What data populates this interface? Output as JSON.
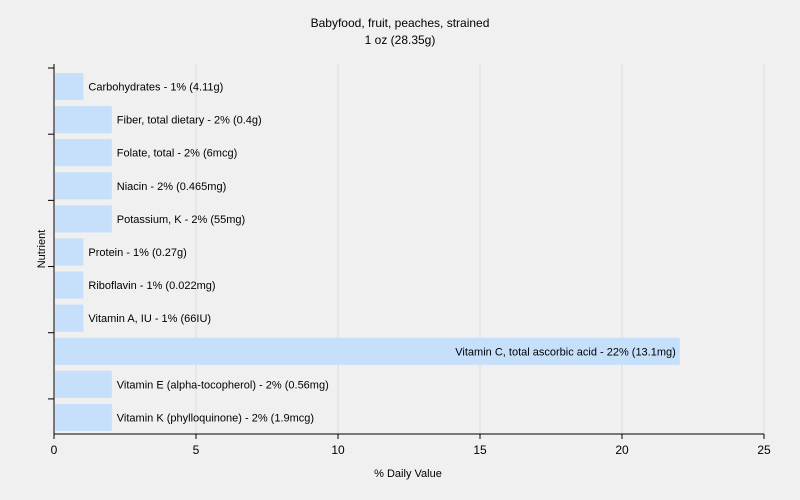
{
  "chart_data": {
    "type": "bar",
    "orientation": "horizontal",
    "title": "Babyfood, fruit, peaches, strained",
    "subtitle": "1 oz (28.35g)",
    "xlabel": "% Daily Value",
    "ylabel": "Nutrient",
    "xlim": [
      0,
      25
    ],
    "xticks": [
      0,
      5,
      10,
      15,
      20,
      25
    ],
    "grid": true,
    "bar_color": "#c6e0fc",
    "categories": [
      "Carbohydrates",
      "Fiber, total dietary",
      "Folate, total",
      "Niacin",
      "Potassium, K",
      "Protein",
      "Riboflavin",
      "Vitamin A, IU",
      "Vitamin C, total ascorbic acid",
      "Vitamin E (alpha-tocopherol)",
      "Vitamin K (phylloquinone)"
    ],
    "values": [
      1,
      2,
      2,
      2,
      2,
      1,
      1,
      1,
      22,
      2,
      2
    ],
    "labels": [
      "Carbohydrates - 1% (4.11g)",
      "Fiber, total dietary - 2% (0.4g)",
      "Folate, total - 2% (6mcg)",
      "Niacin - 2% (0.465mg)",
      "Potassium, K - 2% (55mg)",
      "Protein - 1% (0.27g)",
      "Riboflavin - 1% (0.022mg)",
      "Vitamin A, IU - 1% (66IU)",
      "Vitamin C, total ascorbic acid - 22% (13.1mg)",
      "Vitamin E (alpha-tocopherol) - 2% (0.56mg)",
      "Vitamin K (phylloquinone) - 2% (1.9mcg)"
    ]
  }
}
